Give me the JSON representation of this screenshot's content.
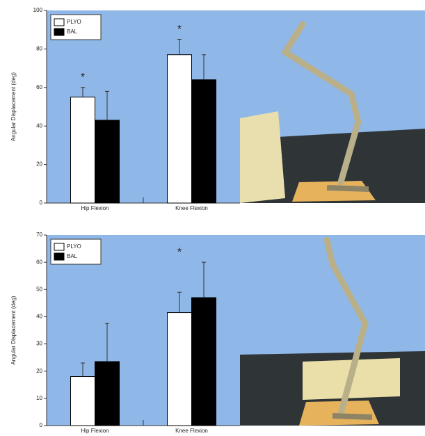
{
  "chart_data": [
    {
      "type": "bar",
      "y_label": "Angular Displacement (deg)",
      "categories": [
        "Hip Flexion",
        "Knee Flexion"
      ],
      "series": [
        {
          "name": "PLYO",
          "color": "#ffffff",
          "values": [
            55,
            77
          ],
          "errors": [
            5,
            8
          ]
        },
        {
          "name": "BAL",
          "color": "#000000",
          "values": [
            43,
            64
          ],
          "errors": [
            15,
            13
          ]
        }
      ],
      "significance": [
        "*",
        "*"
      ],
      "ylim": [
        0,
        100
      ],
      "yticks": [
        0,
        20,
        40,
        60,
        80,
        100
      ],
      "legend": "upper left"
    },
    {
      "type": "bar",
      "y_label": "Angular Displacement (deg)",
      "categories": [
        "Hip Flexion",
        "Knee Flexion"
      ],
      "series": [
        {
          "name": "PLYO",
          "color": "#ffffff",
          "values": [
            18,
            41.5
          ],
          "errors": [
            5,
            7.5
          ]
        },
        {
          "name": "BAL",
          "color": "#000000",
          "values": [
            23.5,
            47
          ],
          "errors": [
            14,
            13
          ]
        }
      ],
      "significance": [
        null,
        "*"
      ],
      "ylim": [
        0,
        70
      ],
      "yticks": [
        0,
        10,
        20,
        30,
        40,
        50,
        60,
        70
      ],
      "legend": "upper left"
    }
  ]
}
